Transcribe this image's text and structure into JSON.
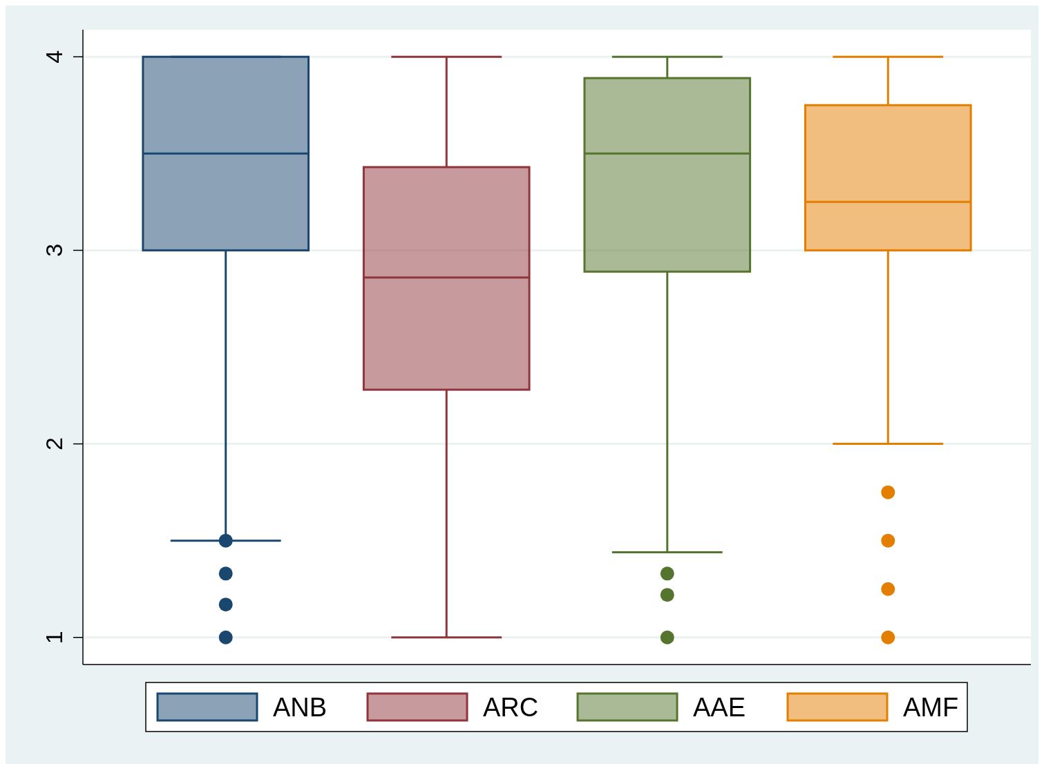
{
  "chart_data": {
    "type": "box",
    "categories": [
      null
    ],
    "ylim": [
      0.86,
      4.14
    ],
    "yticks": [
      1,
      2,
      3,
      4
    ],
    "grid": "y",
    "tick_labels": "y",
    "legend": "bottom",
    "marker": "circle",
    "series": [
      {
        "name": "ANB",
        "color": "#1a476f",
        "boxes": [
          {
            "low": 1.5,
            "q1": 3,
            "median": 3.5,
            "q3": 4,
            "high": 4,
            "outliers": [
              1.5,
              1.33,
              1.17,
              1
            ]
          }
        ]
      },
      {
        "name": "ARC",
        "color": "#90353b",
        "boxes": [
          {
            "low": 1,
            "q1": 2.28,
            "median": 2.86,
            "q3": 3.43,
            "high": 4
          }
        ]
      },
      {
        "name": "AAE",
        "color": "#55752f",
        "boxes": [
          {
            "low": 1.44,
            "q1": 2.89,
            "median": 3.5,
            "q3": 3.89,
            "high": 4,
            "outliers": [
              1.33,
              1.22,
              1
            ]
          }
        ]
      },
      {
        "name": "AMF",
        "color": "#e37e00",
        "boxes": [
          {
            "low": 2,
            "q1": 3,
            "median": 3.25,
            "q3": 3.75,
            "high": 4,
            "outliers": [
              1.75,
              1.5,
              1.25,
              1
            ]
          }
        ]
      }
    ]
  }
}
